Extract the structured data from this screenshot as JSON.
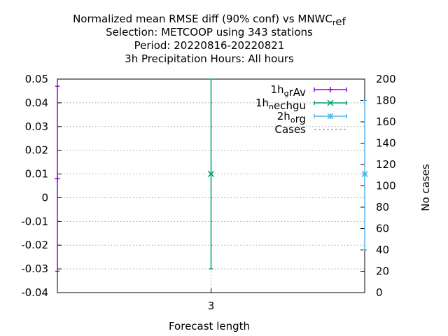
{
  "chart_data": {
    "type": "line",
    "title_lines": [
      [
        "Normalized mean RMSE diff (90% conf) vs MNWC",
        {
          "sub": "r"
        },
        "ef"
      ],
      [
        "Selection: METCOOP using   343 stations"
      ],
      [
        "Period: 20220816-20220821"
      ],
      [
        "3h Precipitation   Hours:  All hours"
      ]
    ],
    "xlabel": "Forecast length",
    "ylabel": "",
    "y2label": "No cases",
    "x_categories": [
      "3"
    ],
    "xlim": [
      2.5,
      3.5
    ],
    "ylim": [
      -0.04,
      0.05
    ],
    "y_ticks": [
      "-0.04",
      "-0.03",
      "-0.02",
      "-0.01",
      "0",
      "0.01",
      "0.02",
      "0.03",
      "0.04",
      "0.05"
    ],
    "y2lim": [
      0,
      200
    ],
    "y2_ticks": [
      "0",
      "20",
      "40",
      "60",
      "80",
      "100",
      "120",
      "140",
      "160",
      "180",
      "200"
    ],
    "grid": true,
    "legend_position": "top-right",
    "series": [
      {
        "legend": [
          "1h",
          {
            "sub": "g"
          },
          "rAv"
        ],
        "color": "#9400d3",
        "marker": "plus",
        "x": 2.5,
        "mean": 0.008,
        "low": -0.031,
        "high": 0.047
      },
      {
        "legend": [
          "1h",
          {
            "sub": "n"
          },
          "echgu"
        ],
        "color": "#009e73",
        "marker": "cross",
        "x": 3.0,
        "mean": 0.01,
        "low": -0.03,
        "high": 0.05
      },
      {
        "legend": [
          "2h",
          {
            "sub": "o"
          },
          "rg"
        ],
        "color": "#56b4e9",
        "marker": "star",
        "x": 3.5,
        "mean": 0.01,
        "low": -0.022,
        "high": 0.041
      },
      {
        "legend": [
          "Cases"
        ],
        "color": "#a0a0a0",
        "marker": "none",
        "axis": "y2",
        "dashed": true,
        "x": [
          3.0
        ],
        "values": [
          0
        ]
      }
    ]
  }
}
